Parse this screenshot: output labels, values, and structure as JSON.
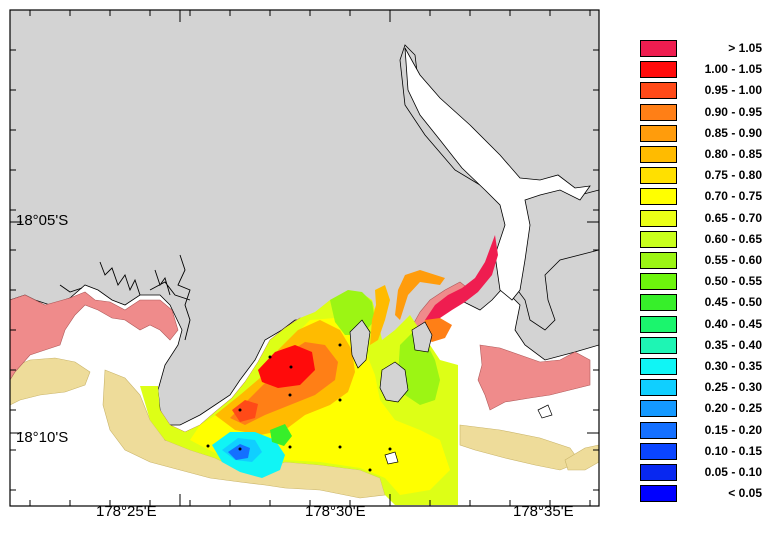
{
  "map": {
    "lat_labels": [
      "18°05'S",
      "18°10'S"
    ],
    "lon_labels": [
      "178°25'E",
      "178°30'E",
      "178°35'E"
    ],
    "colors": {
      "land": "#d3d3d3",
      "water": "#ffffff",
      "mudflat": "#eedc9a",
      "mangrove": "#ef8b8b"
    }
  },
  "legend": {
    "items": [
      {
        "label": ">  1.05",
        "color": "#ef1d50"
      },
      {
        "label": "1.00 - 1.05",
        "color": "#ff0b0b"
      },
      {
        "label": "0.95 - 1.00",
        "color": "#ff4a18"
      },
      {
        "label": "0.90 - 0.95",
        "color": "#ff7f16"
      },
      {
        "label": "0.85 - 0.90",
        "color": "#ff9c0c"
      },
      {
        "label": "0.80 - 0.85",
        "color": "#ffbb00"
      },
      {
        "label": "0.75 - 0.80",
        "color": "#ffe000"
      },
      {
        "label": "0.70 - 0.75",
        "color": "#ffff00"
      },
      {
        "label": "0.65 - 0.70",
        "color": "#eaff16"
      },
      {
        "label": "0.60 - 0.65",
        "color": "#c9ff1c"
      },
      {
        "label": "0.55 - 0.60",
        "color": "#9cf514"
      },
      {
        "label": "0.50 - 0.55",
        "color": "#6df50c"
      },
      {
        "label": "0.45 - 0.50",
        "color": "#37ef2a"
      },
      {
        "label": "0.40 - 0.45",
        "color": "#1bf56d"
      },
      {
        "label": "0.35 - 0.40",
        "color": "#1ef5b4"
      },
      {
        "label": "0.30 - 0.35",
        "color": "#10f5f5"
      },
      {
        "label": "0.25 - 0.30",
        "color": "#10cfff"
      },
      {
        "label": "0.20 - 0.25",
        "color": "#1499ff"
      },
      {
        "label": "0.15 - 0.20",
        "color": "#1470ff"
      },
      {
        "label": "0.10 - 0.15",
        "color": "#0a45ff"
      },
      {
        "label": "0.05 - 0.10",
        "color": "#0828f0"
      },
      {
        "label": "<  0.05",
        "color": "#0000ff"
      }
    ]
  }
}
